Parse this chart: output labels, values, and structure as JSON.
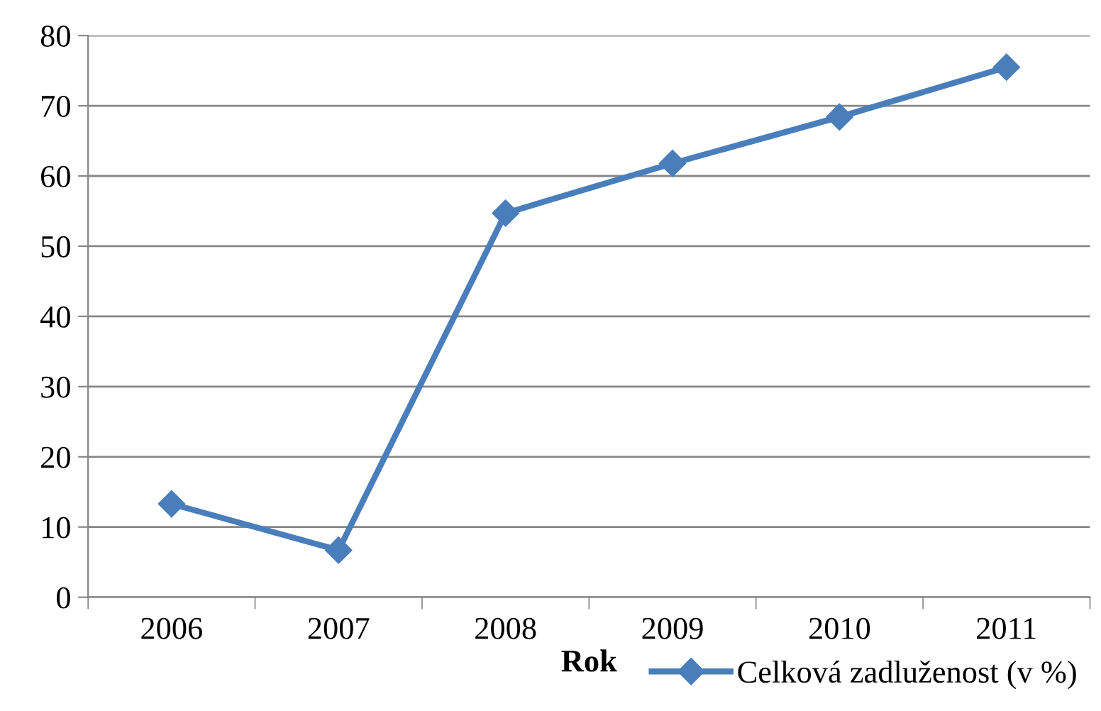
{
  "chart_data": {
    "type": "line",
    "xlabel": "Rok",
    "categories": [
      "2006",
      "2007",
      "2008",
      "2009",
      "2010",
      "2011"
    ],
    "series": [
      {
        "name": "Celková zadluženost (v %)",
        "color": "#4a7ebb",
        "values": [
          13.3,
          6.7,
          54.7,
          61.8,
          68.4,
          75.5
        ]
      }
    ],
    "ylim": [
      0,
      80
    ],
    "yticks": [
      0,
      10,
      20,
      30,
      40,
      50,
      60,
      70,
      80
    ],
    "grid": "y",
    "legend": "bottom right",
    "marker": "diamond",
    "line_style": "solid"
  }
}
